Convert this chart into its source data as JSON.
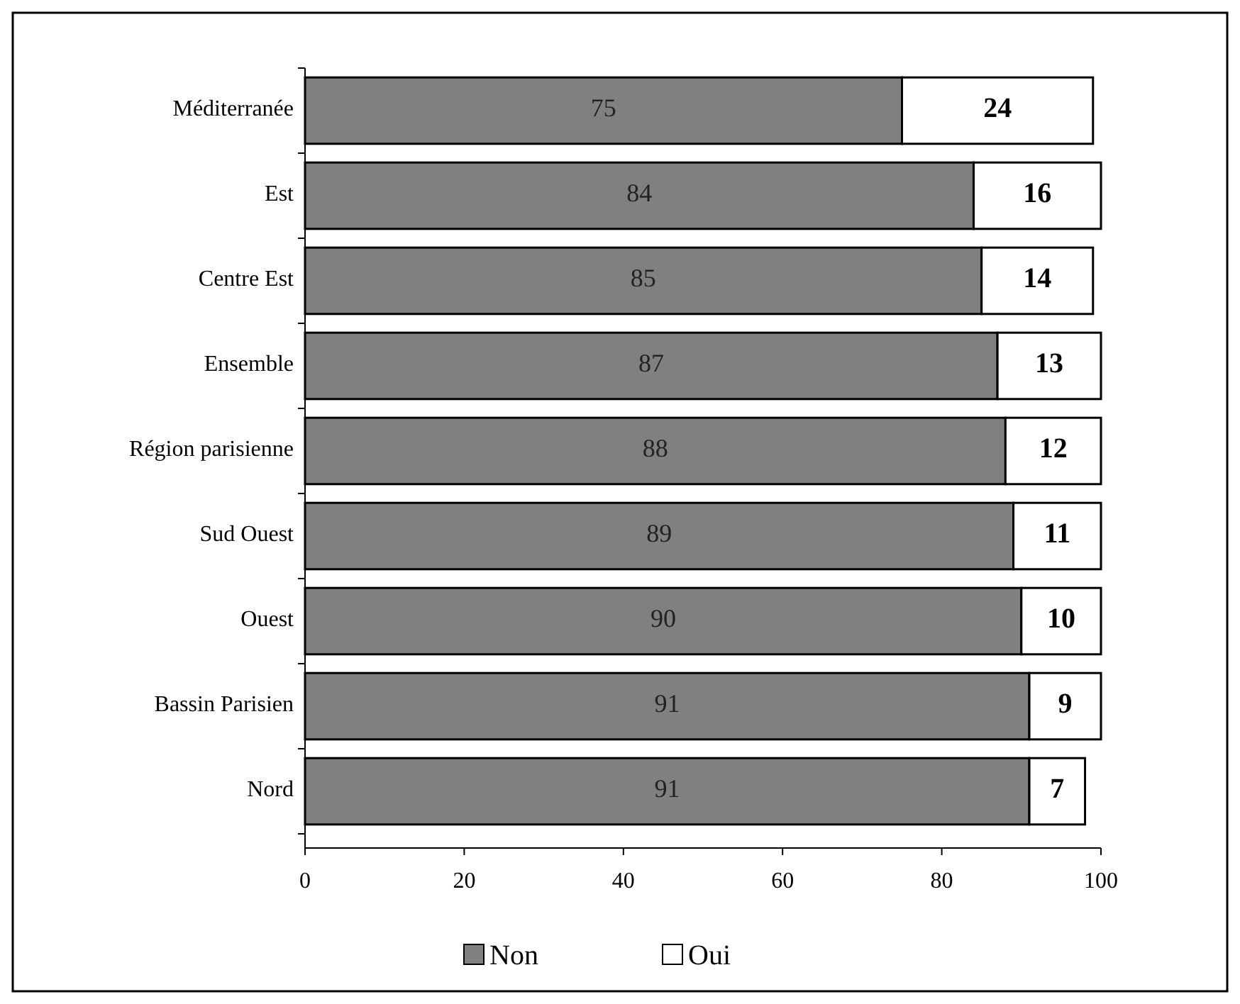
{
  "chart_data": {
    "type": "bar",
    "orientation": "horizontal",
    "stacked": true,
    "categories": [
      "Méditerranée",
      "Est",
      "Centre Est",
      "Ensemble",
      "Région parisienne",
      "Sud Ouest",
      "Ouest",
      "Bassin Parisien",
      "Nord"
    ],
    "series": [
      {
        "name": "Non",
        "color": "#808080",
        "values": [
          75,
          84,
          85,
          87,
          88,
          89,
          90,
          91,
          91
        ]
      },
      {
        "name": "Oui",
        "color": "#ffffff",
        "values": [
          24,
          16,
          14,
          13,
          12,
          11,
          10,
          9,
          7
        ]
      }
    ],
    "xlim": [
      0,
      100
    ],
    "xticks": [
      0,
      20,
      40,
      60,
      80,
      100
    ],
    "data_labels": true,
    "legend": "bottom",
    "grid": false
  }
}
